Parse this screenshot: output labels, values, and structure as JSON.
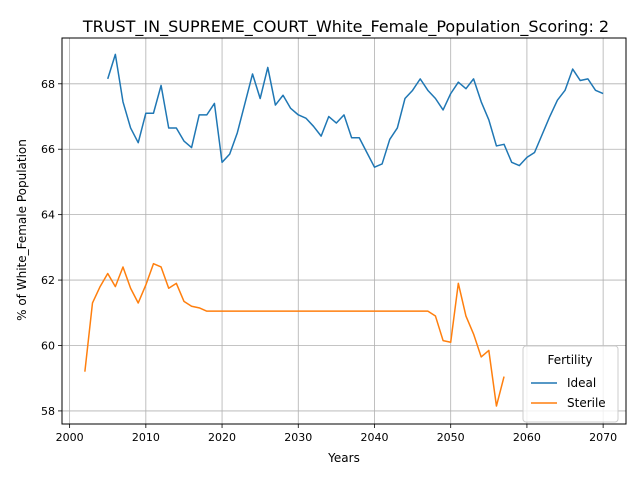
{
  "chart_data": {
    "type": "line",
    "title": "TRUST_IN_SUPREME_COURT_White_Female_Population_Scoring: 2",
    "xlabel": "Years",
    "ylabel": "% of White_Female Population",
    "xlim": [
      1999,
      2073
    ],
    "ylim": [
      57.6,
      69.4
    ],
    "xticks": [
      2000,
      2010,
      2020,
      2030,
      2040,
      2050,
      2060,
      2070
    ],
    "xtick_labels": [
      "2000",
      "2010",
      "2020",
      "2030",
      "2040",
      "2050",
      "2060",
      "2070"
    ],
    "yticks": [
      58,
      60,
      62,
      64,
      66,
      68
    ],
    "ytick_labels": [
      "58",
      "60",
      "62",
      "64",
      "66",
      "68"
    ],
    "grid": true,
    "legend": {
      "title": "Fertility",
      "placement": "lower-right"
    },
    "series": [
      {
        "name": "Ideal",
        "color": "#1f77b4",
        "points": [
          [
            2005,
            68.15
          ],
          [
            2006,
            68.9
          ],
          [
            2007,
            67.45
          ],
          [
            2008,
            66.65
          ],
          [
            2009,
            66.2
          ],
          [
            2010,
            67.1
          ],
          [
            2011,
            67.1
          ],
          [
            2012,
            67.95
          ],
          [
            2013,
            66.65
          ],
          [
            2014,
            66.65
          ],
          [
            2015,
            66.25
          ],
          [
            2016,
            66.05
          ],
          [
            2017,
            67.05
          ],
          [
            2018,
            67.05
          ],
          [
            2019,
            67.4
          ],
          [
            2020,
            65.6
          ],
          [
            2021,
            65.85
          ],
          [
            2022,
            66.5
          ],
          [
            2023,
            67.4
          ],
          [
            2024,
            68.3
          ],
          [
            2025,
            67.55
          ],
          [
            2026,
            68.5
          ],
          [
            2027,
            67.35
          ],
          [
            2028,
            67.65
          ],
          [
            2029,
            67.25
          ],
          [
            2030,
            67.05
          ],
          [
            2031,
            66.95
          ],
          [
            2032,
            66.7
          ],
          [
            2033,
            66.4
          ],
          [
            2034,
            67.0
          ],
          [
            2035,
            66.8
          ],
          [
            2036,
            67.05
          ],
          [
            2037,
            66.35
          ],
          [
            2038,
            66.35
          ],
          [
            2039,
            65.9
          ],
          [
            2040,
            65.45
          ],
          [
            2041,
            65.55
          ],
          [
            2042,
            66.3
          ],
          [
            2043,
            66.65
          ],
          [
            2044,
            67.55
          ],
          [
            2045,
            67.8
          ],
          [
            2046,
            68.15
          ],
          [
            2047,
            67.8
          ],
          [
            2048,
            67.55
          ],
          [
            2049,
            67.2
          ],
          [
            2050,
            67.7
          ],
          [
            2051,
            68.05
          ],
          [
            2052,
            67.85
          ],
          [
            2053,
            68.15
          ],
          [
            2054,
            67.45
          ],
          [
            2055,
            66.9
          ],
          [
            2056,
            66.1
          ],
          [
            2057,
            66.15
          ],
          [
            2058,
            65.6
          ],
          [
            2059,
            65.5
          ],
          [
            2060,
            65.75
          ],
          [
            2061,
            65.9
          ],
          [
            2062,
            66.45
          ],
          [
            2063,
            67.0
          ],
          [
            2064,
            67.5
          ],
          [
            2065,
            67.8
          ],
          [
            2066,
            68.45
          ],
          [
            2067,
            68.1
          ],
          [
            2068,
            68.15
          ],
          [
            2069,
            67.8
          ],
          [
            2070,
            67.7
          ]
        ]
      },
      {
        "name": "Sterile",
        "color": "#ff7f0e",
        "points": [
          [
            2002,
            59.2
          ],
          [
            2003,
            61.3
          ],
          [
            2004,
            61.8
          ],
          [
            2005,
            62.2
          ],
          [
            2006,
            61.8
          ],
          [
            2007,
            62.4
          ],
          [
            2008,
            61.75
          ],
          [
            2009,
            61.3
          ],
          [
            2010,
            61.85
          ],
          [
            2011,
            62.5
          ],
          [
            2012,
            62.4
          ],
          [
            2013,
            61.75
          ],
          [
            2014,
            61.9
          ],
          [
            2015,
            61.35
          ],
          [
            2016,
            61.2
          ],
          [
            2017,
            61.15
          ],
          [
            2018,
            61.05
          ],
          [
            2019,
            61.05
          ],
          [
            2020,
            61.05
          ],
          [
            2021,
            61.05
          ],
          [
            2022,
            61.05
          ],
          [
            2023,
            61.05
          ],
          [
            2024,
            61.05
          ],
          [
            2025,
            61.05
          ],
          [
            2026,
            61.05
          ],
          [
            2027,
            61.05
          ],
          [
            2028,
            61.05
          ],
          [
            2029,
            61.05
          ],
          [
            2030,
            61.05
          ],
          [
            2031,
            61.05
          ],
          [
            2032,
            61.05
          ],
          [
            2033,
            61.05
          ],
          [
            2034,
            61.05
          ],
          [
            2035,
            61.05
          ],
          [
            2036,
            61.05
          ],
          [
            2037,
            61.05
          ],
          [
            2038,
            61.05
          ],
          [
            2039,
            61.05
          ],
          [
            2040,
            61.05
          ],
          [
            2041,
            61.05
          ],
          [
            2042,
            61.05
          ],
          [
            2043,
            61.05
          ],
          [
            2044,
            61.05
          ],
          [
            2045,
            61.05
          ],
          [
            2046,
            61.05
          ],
          [
            2047,
            61.05
          ],
          [
            2048,
            60.9
          ],
          [
            2049,
            60.15
          ],
          [
            2050,
            60.1
          ],
          [
            2051,
            61.9
          ],
          [
            2052,
            60.9
          ],
          [
            2053,
            60.35
          ],
          [
            2054,
            59.65
          ],
          [
            2055,
            59.85
          ],
          [
            2056,
            58.15
          ],
          [
            2057,
            59.05
          ]
        ]
      }
    ]
  }
}
